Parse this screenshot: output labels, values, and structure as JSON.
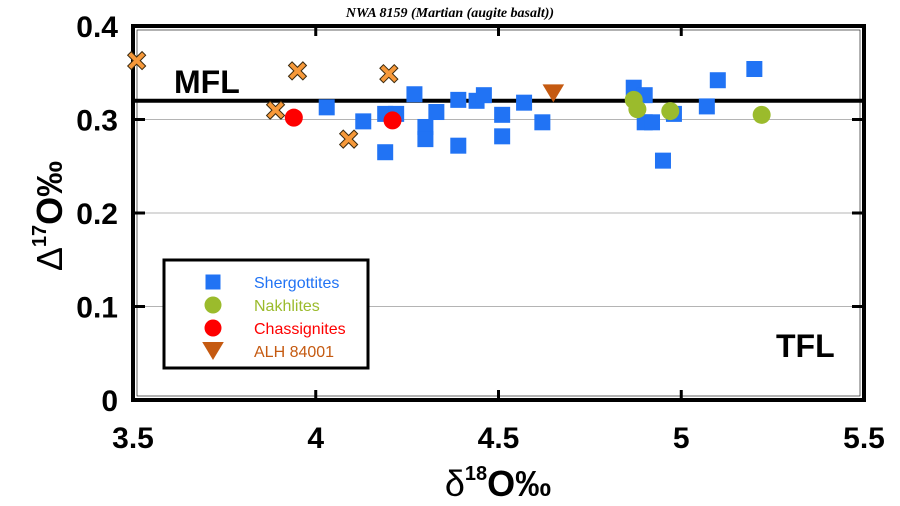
{
  "chart_data": {
    "type": "scatter",
    "title": "NWA 8159 (Martian (augite basalt))",
    "xlabel": "δ18O‰",
    "xlabel_parts": {
      "symbol": "δ",
      "sup": "18",
      "rest": "O‰"
    },
    "ylabel": "Δ17O‰",
    "ylabel_parts": {
      "symbol": "Δ",
      "sup": "17",
      "rest": "O‰"
    },
    "xlim": [
      3.5,
      5.5
    ],
    "ylim": [
      0,
      0.4
    ],
    "xticks": [
      3.5,
      4,
      4.5,
      5,
      5.5
    ],
    "xtick_labels": [
      "3.5",
      "4",
      "4.5",
      "5",
      "5.5"
    ],
    "yticks": [
      0,
      0.1,
      0.2,
      0.3,
      0.4
    ],
    "ytick_labels": [
      "0",
      "0.1",
      "0.2",
      "0.3",
      "0.4"
    ],
    "grid": "horizontal",
    "reference_lines": [
      {
        "name": "MFL",
        "label": "MFL",
        "y": 0.32
      },
      {
        "name": "TFL",
        "label": "TFL",
        "y": 0.0
      }
    ],
    "legend_position": "lower-left",
    "series": [
      {
        "name": "Shergottites",
        "marker": "square",
        "color": "#2173f4",
        "points": [
          [
            4.03,
            0.313
          ],
          [
            4.13,
            0.298
          ],
          [
            4.19,
            0.265
          ],
          [
            4.19,
            0.306
          ],
          [
            4.22,
            0.306
          ],
          [
            4.27,
            0.327
          ],
          [
            4.3,
            0.292
          ],
          [
            4.3,
            0.279
          ],
          [
            4.33,
            0.308
          ],
          [
            4.39,
            0.321
          ],
          [
            4.39,
            0.272
          ],
          [
            4.44,
            0.32
          ],
          [
            4.46,
            0.326
          ],
          [
            4.51,
            0.305
          ],
          [
            4.51,
            0.282
          ],
          [
            4.57,
            0.318
          ],
          [
            4.62,
            0.297
          ],
          [
            4.87,
            0.334
          ],
          [
            4.9,
            0.326
          ],
          [
            4.9,
            0.297
          ],
          [
            4.92,
            0.297
          ],
          [
            4.98,
            0.306
          ],
          [
            4.95,
            0.256
          ],
          [
            5.07,
            0.314
          ],
          [
            5.1,
            0.342
          ],
          [
            5.2,
            0.354
          ]
        ]
      },
      {
        "name": "Nakhlites",
        "marker": "circle",
        "color": "#9bbb2c",
        "points": [
          [
            4.87,
            0.321
          ],
          [
            4.88,
            0.311
          ],
          [
            4.97,
            0.309
          ],
          [
            5.22,
            0.305
          ]
        ]
      },
      {
        "name": "Chassignites",
        "marker": "circle",
        "color": "#fe0000",
        "points": [
          [
            3.94,
            0.302
          ],
          [
            4.21,
            0.299
          ]
        ]
      },
      {
        "name": "ALH 84001",
        "marker": "triangle-down",
        "color": "#c55a11",
        "points": [
          [
            4.65,
            0.328
          ]
        ]
      },
      {
        "name": "NWA 8159",
        "marker": "x",
        "color": "#f7993a",
        "in_legend": false,
        "points": [
          [
            3.51,
            0.363
          ],
          [
            3.95,
            0.352
          ],
          [
            4.2,
            0.349
          ],
          [
            3.89,
            0.31
          ],
          [
            4.09,
            0.279
          ]
        ]
      }
    ]
  }
}
